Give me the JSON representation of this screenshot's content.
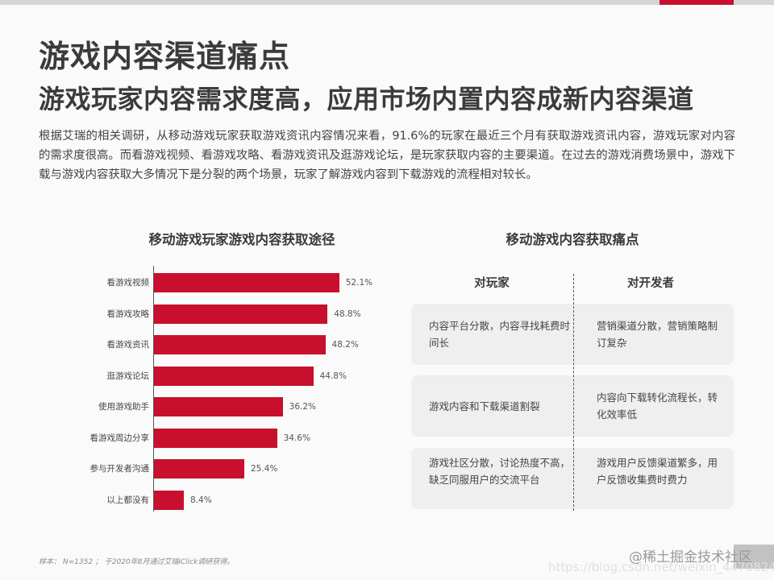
{
  "page": {
    "title": "游戏内容渠道痛点",
    "subtitle": "游戏玩家内容需求度高，应用市场内置内容成新内容渠道",
    "intro": "根据艾瑞的相关调研，从移动游戏玩家获取游戏资讯内容情况来看，91.6%的玩家在最近三个月有获取游戏资讯内容，游戏玩家对内容的需求度很高。而看游戏视频、看游戏攻略、看游戏资讯及逛游戏论坛，是玩家获取内容的主要渠道。在过去的游戏消费场景中，游戏下载与游戏内容获取大多情况下是分裂的两个场景，玩家了解游戏内容到下载游戏的流程相对较长。",
    "accent_color": "#c8102e"
  },
  "chart_data": {
    "type": "bar",
    "orientation": "horizontal",
    "title": "移动游戏玩家游戏内容获取途径",
    "categories": [
      "看游戏视频",
      "看游戏攻略",
      "看游戏资讯",
      "逛游戏论坛",
      "使用游戏助手",
      "看游戏周边分享",
      "参与开发者沟通",
      "以上都没有"
    ],
    "values": [
      52.1,
      48.8,
      48.2,
      44.8,
      36.2,
      34.6,
      25.4,
      8.4
    ],
    "value_labels": [
      "52.1%",
      "48.8%",
      "48.2%",
      "44.8%",
      "36.2%",
      "34.6%",
      "25.4%",
      "8.4%"
    ],
    "unit": "%",
    "xlabel": "",
    "ylabel": "",
    "grid": false,
    "bar_color": "#c8102e"
  },
  "pain_points": {
    "title": "移动游戏内容获取痛点",
    "columns": [
      "对玩家",
      "对开发者"
    ],
    "rows": [
      {
        "players": "内容平台分散，内容寻找耗费时间长",
        "developers": "营销渠道分散，营销策略制订复杂"
      },
      {
        "players": "游戏内容和下载渠道割裂",
        "developers": "内容向下载转化流程长，转化效率低"
      },
      {
        "players": "游戏社区分散，讨论热度不高，缺乏同服用户的交流平台",
        "developers": "游戏用户反馈渠道繁多，用户反馈收集费时费力"
      }
    ]
  },
  "footer": {
    "note": "样本： N=1352 ； 于2020年8月通过艾瑞iClick调研获得。",
    "watermark": "@稀土掘金技术社区",
    "watermark_url": "https://blog.csdn.net/weixin_44708240"
  }
}
